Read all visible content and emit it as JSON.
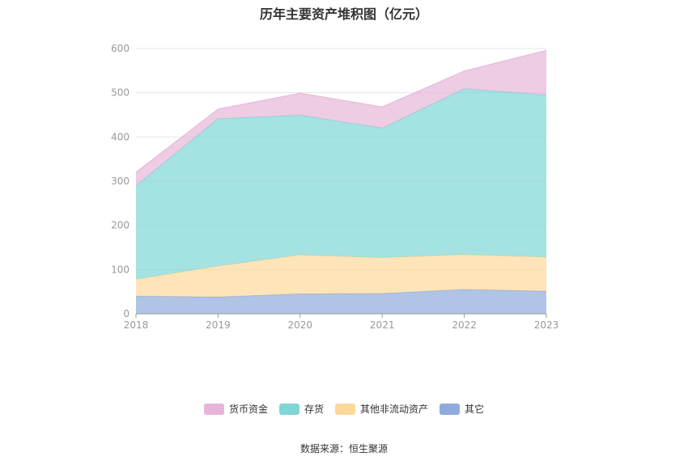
{
  "source_label": "数据来源：恒生聚源",
  "chart_data": {
    "type": "area",
    "stacked": true,
    "title": "历年主要资产堆积图（亿元）",
    "categories": [
      "2018",
      "2019",
      "2020",
      "2021",
      "2022",
      "2023"
    ],
    "ylim": [
      0,
      600
    ],
    "yticks": [
      0,
      100,
      200,
      300,
      400,
      500,
      600
    ],
    "grid": true,
    "legend_position": "bottom",
    "series": [
      {
        "name": "其它",
        "color": "#8fabdc",
        "values": [
          40,
          38,
          45,
          46,
          55,
          51
        ]
      },
      {
        "name": "其他非流动资产",
        "color": "#fdd89b",
        "values": [
          38,
          70,
          88,
          81,
          79,
          77
        ]
      },
      {
        "name": "存货",
        "color": "#7fd6d6",
        "values": [
          212,
          333,
          316,
          293,
          375,
          367
        ]
      },
      {
        "name": "货币资金",
        "color": "#e6b6d8",
        "values": [
          30,
          22,
          50,
          48,
          40,
          101
        ]
      }
    ],
    "legend_order": [
      "货币资金",
      "存货",
      "其他非流动资产",
      "其它"
    ]
  }
}
